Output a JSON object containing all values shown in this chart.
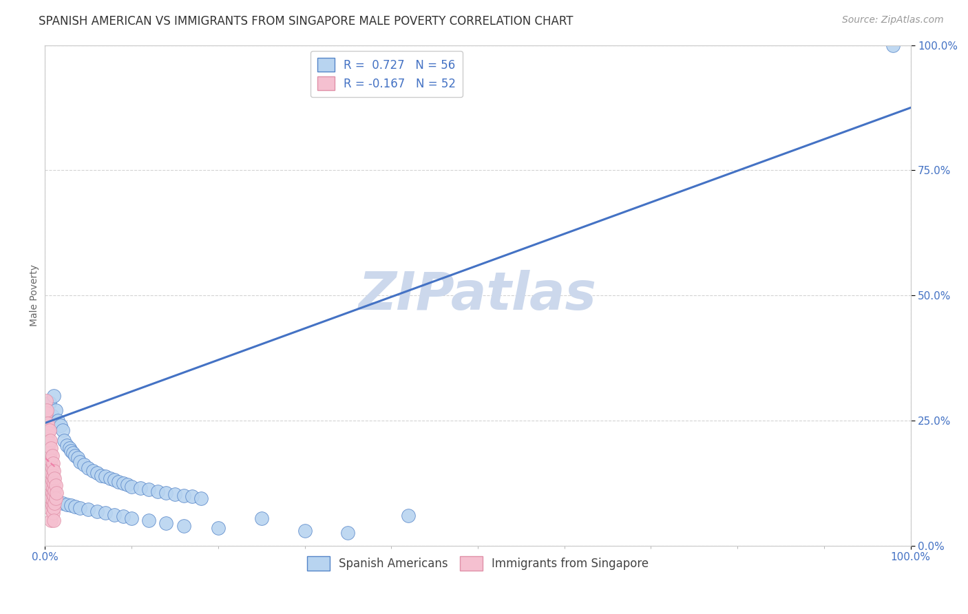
{
  "title": "SPANISH AMERICAN VS IMMIGRANTS FROM SINGAPORE MALE POVERTY CORRELATION CHART",
  "source": "Source: ZipAtlas.com",
  "ylabel": "Male Poverty",
  "watermark": "ZIPatlas",
  "blue_R": 0.727,
  "blue_N": 56,
  "pink_R": -0.167,
  "pink_N": 52,
  "blue_color": "#b8d4f0",
  "pink_color": "#f5c0d0",
  "blue_edge_color": "#5585c8",
  "pink_edge_color": "#e090a8",
  "blue_line_color": "#4472c4",
  "pink_line_color": "#f080a8",
  "legend_label_blue": "Spanish Americans",
  "legend_label_pink": "Immigrants from Singapore",
  "blue_scatter_x": [
    0.005,
    0.008,
    0.01,
    0.012,
    0.015,
    0.018,
    0.02,
    0.022,
    0.025,
    0.028,
    0.03,
    0.032,
    0.035,
    0.038,
    0.04,
    0.045,
    0.05,
    0.055,
    0.06,
    0.065,
    0.07,
    0.075,
    0.08,
    0.085,
    0.09,
    0.095,
    0.1,
    0.11,
    0.12,
    0.13,
    0.14,
    0.15,
    0.16,
    0.17,
    0.18,
    0.015,
    0.02,
    0.025,
    0.03,
    0.035,
    0.04,
    0.05,
    0.06,
    0.07,
    0.08,
    0.09,
    0.1,
    0.12,
    0.14,
    0.16,
    0.2,
    0.25,
    0.3,
    0.35,
    0.42,
    0.98
  ],
  "blue_scatter_y": [
    0.285,
    0.26,
    0.3,
    0.27,
    0.25,
    0.24,
    0.23,
    0.21,
    0.2,
    0.195,
    0.19,
    0.185,
    0.18,
    0.175,
    0.168,
    0.162,
    0.155,
    0.15,
    0.145,
    0.14,
    0.138,
    0.135,
    0.132,
    0.128,
    0.125,
    0.122,
    0.118,
    0.115,
    0.112,
    0.108,
    0.105,
    0.102,
    0.1,
    0.098,
    0.095,
    0.088,
    0.085,
    0.082,
    0.08,
    0.078,
    0.075,
    0.072,
    0.068,
    0.065,
    0.062,
    0.058,
    0.055,
    0.05,
    0.045,
    0.04,
    0.035,
    0.055,
    0.03,
    0.025,
    0.06,
    1.0
  ],
  "pink_scatter_x": [
    0.001,
    0.001,
    0.002,
    0.002,
    0.002,
    0.003,
    0.003,
    0.003,
    0.004,
    0.004,
    0.004,
    0.004,
    0.005,
    0.005,
    0.005,
    0.005,
    0.005,
    0.005,
    0.005,
    0.006,
    0.006,
    0.006,
    0.006,
    0.006,
    0.007,
    0.007,
    0.007,
    0.007,
    0.007,
    0.007,
    0.007,
    0.008,
    0.008,
    0.008,
    0.008,
    0.008,
    0.009,
    0.009,
    0.009,
    0.009,
    0.009,
    0.01,
    0.01,
    0.01,
    0.01,
    0.01,
    0.011,
    0.011,
    0.011,
    0.012,
    0.012,
    0.013
  ],
  "pink_scatter_y": [
    0.29,
    0.265,
    0.27,
    0.24,
    0.21,
    0.245,
    0.22,
    0.195,
    0.225,
    0.2,
    0.175,
    0.15,
    0.23,
    0.205,
    0.18,
    0.155,
    0.13,
    0.108,
    0.085,
    0.21,
    0.185,
    0.16,
    0.135,
    0.11,
    0.195,
    0.17,
    0.145,
    0.12,
    0.095,
    0.072,
    0.05,
    0.18,
    0.155,
    0.13,
    0.105,
    0.08,
    0.165,
    0.14,
    0.115,
    0.09,
    0.065,
    0.15,
    0.125,
    0.1,
    0.075,
    0.05,
    0.135,
    0.11,
    0.085,
    0.12,
    0.095,
    0.105
  ],
  "blue_line_x": [
    0.0,
    1.0
  ],
  "blue_line_y": [
    0.245,
    0.875
  ],
  "pink_line_x": [
    0.0,
    0.013
  ],
  "pink_line_y": [
    0.175,
    0.155
  ],
  "xlim": [
    0.0,
    1.0
  ],
  "ylim": [
    0.0,
    1.0
  ],
  "xticks": [
    0.0,
    1.0
  ],
  "xtick_labels": [
    "0.0%",
    "100.0%"
  ],
  "yticks_right": [
    0.0,
    0.25,
    0.5,
    0.75,
    1.0
  ],
  "ytick_labels_right": [
    "0.0%",
    "25.0%",
    "50.0%",
    "75.0%",
    "100.0%"
  ],
  "title_fontsize": 12,
  "source_fontsize": 10,
  "axis_label_fontsize": 10,
  "tick_fontsize": 11,
  "legend_fontsize": 12,
  "background_color": "#ffffff",
  "grid_color": "#c8c8c8",
  "watermark_color": "#ccd8ec",
  "watermark_fontsize": 55
}
